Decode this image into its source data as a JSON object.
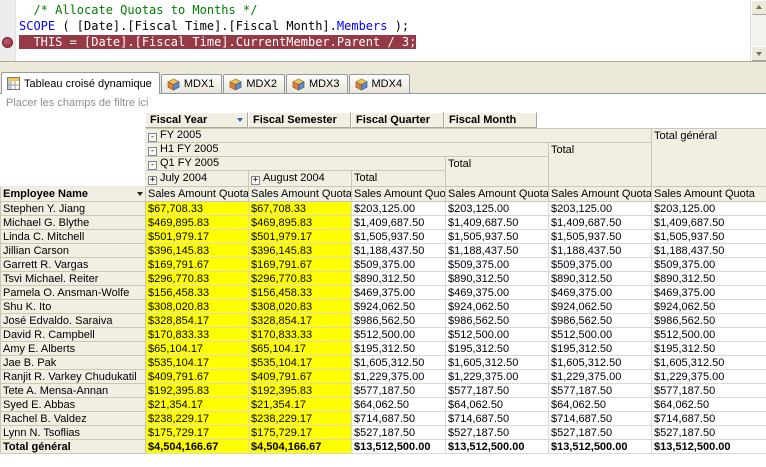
{
  "colors": {
    "cell_highlight": "#ffff00",
    "breakpoint_highlight": "#963a46",
    "header_beige": "#f1efe2"
  },
  "icons": {
    "collapse": "-",
    "expand": "+"
  },
  "editor": {
    "lines": [
      {
        "highlighted": false,
        "segments": [
          {
            "style": "comment",
            "text": "  /* Allocate Quotas to Months */"
          }
        ]
      },
      {
        "highlighted": false,
        "segments": [
          {
            "style": "keyword",
            "text": "SCOPE"
          },
          {
            "style": "plain",
            "text": " ( [Date].[Fiscal Time].[Fiscal Month]."
          },
          {
            "style": "keyword",
            "text": "Members"
          },
          {
            "style": "plain",
            "text": " );"
          }
        ]
      },
      {
        "highlighted": true,
        "segments": [
          {
            "style": "highlight",
            "text": "  THIS = [Date].[Fiscal Time].CurrentMember.Parent / 3;"
          }
        ]
      }
    ]
  },
  "tabs": [
    {
      "label": "Tableau croisé dynamique",
      "icon": "pivot-table-icon",
      "active": true
    },
    {
      "label": "MDX1",
      "icon": "cube-icon",
      "active": false
    },
    {
      "label": "MDX2",
      "icon": "cube-icon",
      "active": false
    },
    {
      "label": "MDX3",
      "icon": "cube-icon",
      "active": false
    },
    {
      "label": "MDX4",
      "icon": "cube-icon",
      "active": false
    }
  ],
  "pivot": {
    "filter_hint": "Placer les champs de filtre ici",
    "column_fields": [
      {
        "label": "Fiscal Year",
        "dropdown": true
      },
      {
        "label": "Fiscal Semester",
        "dropdown": false
      },
      {
        "label": "Fiscal Quarter",
        "dropdown": false
      },
      {
        "label": "Fiscal Month",
        "dropdown": false
      }
    ],
    "column_tree": [
      {
        "label": "FY 2005",
        "expand": "minus"
      },
      {
        "label": "H1 FY 2005",
        "expand": "minus"
      },
      {
        "label": "Q1 FY 2005",
        "expand": "minus"
      },
      {
        "label": "July 2004",
        "expand": "plus"
      },
      {
        "label": "August 2004",
        "expand": "plus"
      }
    ],
    "total_label": "Total",
    "grand_total_label": "Total général",
    "measure_label": "Sales Amount Quota",
    "row_field": "Employee Name",
    "rows": [
      {
        "name": "Stephen Y. Jiang",
        "values": [
          "$67,708.33",
          "$67,708.33",
          "$203,125.00",
          "$203,125.00",
          "$203,125.00",
          "$203,125.00"
        ]
      },
      {
        "name": "Michael G. Blythe",
        "values": [
          "$469,895.83",
          "$469,895.83",
          "$1,409,687.50",
          "$1,409,687.50",
          "$1,409,687.50",
          "$1,409,687.50"
        ]
      },
      {
        "name": "Linda C. Mitchell",
        "values": [
          "$501,979.17",
          "$501,979.17",
          "$1,505,937.50",
          "$1,505,937.50",
          "$1,505,937.50",
          "$1,505,937.50"
        ]
      },
      {
        "name": "Jillian Carson",
        "values": [
          "$396,145.83",
          "$396,145.83",
          "$1,188,437.50",
          "$1,188,437.50",
          "$1,188,437.50",
          "$1,188,437.50"
        ]
      },
      {
        "name": "Garrett R. Vargas",
        "values": [
          "$169,791.67",
          "$169,791.67",
          "$509,375.00",
          "$509,375.00",
          "$509,375.00",
          "$509,375.00"
        ]
      },
      {
        "name": "Tsvi Michael. Reiter",
        "values": [
          "$296,770.83",
          "$296,770.83",
          "$890,312.50",
          "$890,312.50",
          "$890,312.50",
          "$890,312.50"
        ]
      },
      {
        "name": "Pamela O. Ansman-Wolfe",
        "values": [
          "$156,458.33",
          "$156,458.33",
          "$469,375.00",
          "$469,375.00",
          "$469,375.00",
          "$469,375.00"
        ]
      },
      {
        "name": "Shu K. Ito",
        "values": [
          "$308,020.83",
          "$308,020.83",
          "$924,062.50",
          "$924,062.50",
          "$924,062.50",
          "$924,062.50"
        ]
      },
      {
        "name": "José Edvaldo. Saraiva",
        "values": [
          "$328,854.17",
          "$328,854.17",
          "$986,562.50",
          "$986,562.50",
          "$986,562.50",
          "$986,562.50"
        ]
      },
      {
        "name": "David R. Campbell",
        "values": [
          "$170,833.33",
          "$170,833.33",
          "$512,500.00",
          "$512,500.00",
          "$512,500.00",
          "$512,500.00"
        ]
      },
      {
        "name": "Amy E. Alberts",
        "values": [
          "$65,104.17",
          "$65,104.17",
          "$195,312.50",
          "$195,312.50",
          "$195,312.50",
          "$195,312.50"
        ]
      },
      {
        "name": "Jae B. Pak",
        "values": [
          "$535,104.17",
          "$535,104.17",
          "$1,605,312.50",
          "$1,605,312.50",
          "$1,605,312.50",
          "$1,605,312.50"
        ]
      },
      {
        "name": "Ranjit R. Varkey Chudukatil",
        "values": [
          "$409,791.67",
          "$409,791.67",
          "$1,229,375.00",
          "$1,229,375.00",
          "$1,229,375.00",
          "$1,229,375.00"
        ]
      },
      {
        "name": "Tete A. Mensa-Annan",
        "values": [
          "$192,395.83",
          "$192,395.83",
          "$577,187.50",
          "$577,187.50",
          "$577,187.50",
          "$577,187.50"
        ]
      },
      {
        "name": "Syed E. Abbas",
        "values": [
          "$21,354.17",
          "$21,354.17",
          "$64,062.50",
          "$64,062.50",
          "$64,062.50",
          "$64,062.50"
        ]
      },
      {
        "name": "Rachel B. Valdez",
        "values": [
          "$238,229.17",
          "$238,229.17",
          "$714,687.50",
          "$714,687.50",
          "$714,687.50",
          "$714,687.50"
        ]
      },
      {
        "name": "Lynn N. Tsoflias",
        "values": [
          "$175,729.17",
          "$175,729.17",
          "$527,187.50",
          "$527,187.50",
          "$527,187.50",
          "$527,187.50"
        ]
      },
      {
        "name": "Total général",
        "total": true,
        "values": [
          "$4,504,166.67",
          "$4,504,166.67",
          "$13,512,500.00",
          "$13,512,500.00",
          "$13,512,500.00",
          "$13,512,500.00"
        ]
      }
    ]
  }
}
